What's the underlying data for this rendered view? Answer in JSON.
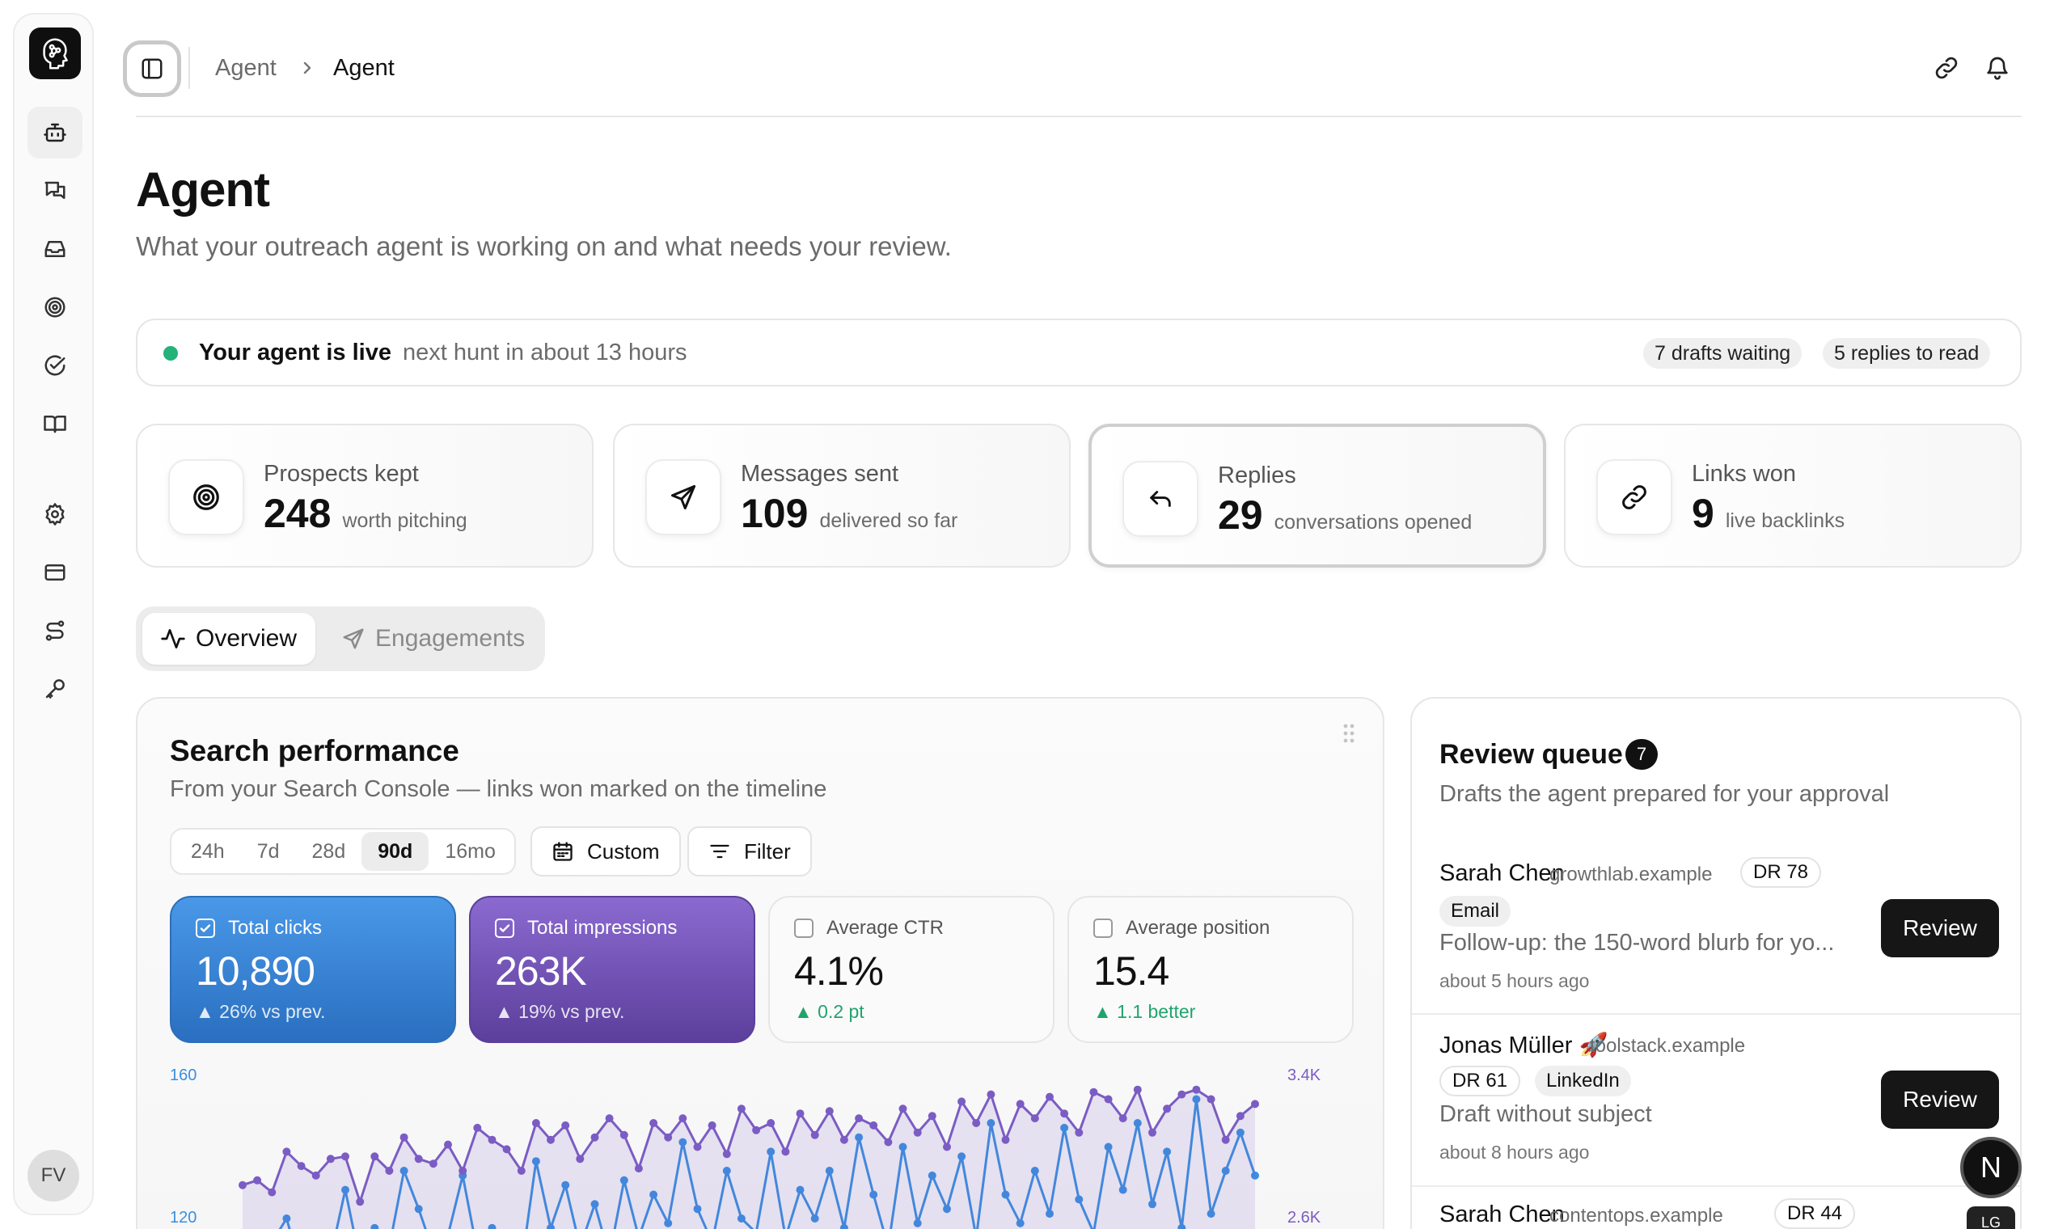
{
  "sidebar": {
    "items": [
      {
        "icon": "bot-icon",
        "active": true
      },
      {
        "icon": "chats-icon"
      },
      {
        "icon": "inbox-icon"
      },
      {
        "icon": "target-icon"
      },
      {
        "icon": "check-circle-icon"
      },
      {
        "icon": "book-icon"
      },
      {
        "icon": "gear-icon"
      },
      {
        "icon": "credit-card-icon"
      },
      {
        "icon": "route-icon"
      },
      {
        "icon": "key-icon"
      }
    ],
    "avatar": "FV"
  },
  "breadcrumb": {
    "items": [
      "Agent",
      "Agent"
    ]
  },
  "header": {
    "title": "Agent",
    "subtitle": "What your outreach agent is working on and what needs your review."
  },
  "status": {
    "title": "Your agent is live",
    "next_hunt": "next hunt in about 13 hours",
    "drafts": "7 drafts waiting",
    "replies": "5 replies to read",
    "dot_color": "#22b27a"
  },
  "stats": [
    {
      "label": "Prospects kept",
      "value": "248",
      "note": "worth pitching",
      "icon": "target-icon"
    },
    {
      "label": "Messages sent",
      "value": "109",
      "note": "delivered so far",
      "icon": "send-icon"
    },
    {
      "label": "Replies",
      "value": "29",
      "note": "conversations opened",
      "icon": "reply-icon"
    },
    {
      "label": "Links won",
      "value": "9",
      "note": "live backlinks",
      "icon": "link-icon"
    }
  ],
  "tabs": [
    {
      "label": "Overview",
      "icon": "activity-icon",
      "active": true
    },
    {
      "label": "Engagements",
      "icon": "send-icon",
      "active": false
    }
  ],
  "performance": {
    "title": "Search performance",
    "subtitle": "From your Search Console — links won marked on the timeline",
    "ranges": [
      "24h",
      "7d",
      "28d",
      "90d",
      "16mo"
    ],
    "active_range": "90d",
    "custom_label": "Custom",
    "filter_label": "Filter",
    "metrics": [
      {
        "label": "Total clicks",
        "value": "10,890",
        "delta": "▲ 26% vs prev.",
        "checked": true,
        "color": "#3b82d6"
      },
      {
        "label": "Total impressions",
        "value": "263K",
        "delta": "▲ 19% vs prev.",
        "checked": true,
        "color": "#7b5cc4"
      },
      {
        "label": "Average CTR",
        "value": "4.1%",
        "delta": "▲ 0.2 pt",
        "checked": false
      },
      {
        "label": "Average position",
        "value": "15.4",
        "delta": "▲ 1.1 better",
        "checked": false
      }
    ]
  },
  "chart_data": {
    "type": "line",
    "y_left_ticks": [
      "160",
      "120"
    ],
    "y_right_ticks": [
      "3.4K",
      "2.6K"
    ],
    "ylim_left": [
      80,
      160
    ],
    "ylim_right": [
      1800,
      3400
    ],
    "series": [
      {
        "name": "Total clicks",
        "axis": "left",
        "color": "#3b8fe0",
        "values": [
          88,
          80,
          90,
          100,
          78,
          92,
          84,
          112,
          82,
          96,
          88,
          120,
          104,
          86,
          93,
          118,
          86,
          96,
          92,
          80,
          124,
          96,
          114,
          88,
          106,
          84,
          116,
          92,
          110,
          98,
          132,
          104,
          90,
          120,
          100,
          94,
          128,
          92,
          112,
          100,
          120,
          96,
          134,
          110,
          88,
          130,
          98,
          118,
          104,
          126,
          92,
          140,
          110,
          98,
          120,
          102,
          138,
          108,
          94,
          130,
          112,
          140,
          106,
          128,
          96,
          150,
          102,
          120,
          136,
          118
        ]
      },
      {
        "name": "Total impressions",
        "axis": "right",
        "color": "#7b5cc4",
        "values": [
          2480,
          2520,
          2420,
          2760,
          2640,
          2560,
          2700,
          2720,
          2340,
          2720,
          2600,
          2880,
          2700,
          2660,
          2820,
          2600,
          2960,
          2860,
          2780,
          2600,
          3000,
          2860,
          2980,
          2700,
          2880,
          3040,
          2900,
          2620,
          3000,
          2880,
          3040,
          2800,
          2980,
          2740,
          3120,
          2940,
          3000,
          2760,
          3080,
          2900,
          3100,
          2860,
          3040,
          2980,
          2840,
          3120,
          2920,
          3060,
          2800,
          3180,
          3000,
          3240,
          2860,
          3160,
          3040,
          3220,
          3080,
          2920,
          3260,
          3200,
          3040,
          3280,
          2920,
          3120,
          3240,
          3280,
          3200,
          2860,
          3060,
          3160
        ]
      }
    ]
  },
  "review": {
    "title": "Review queue",
    "count": "7",
    "subtitle": "Drafts the agent prepared for your approval",
    "items": [
      {
        "name": "Sarah Chen",
        "domain": "growthlab.example",
        "dr": "DR 78",
        "channel": "Email",
        "preview": "Follow-up: the 150-word blurb for yo...",
        "time": "about 5 hours ago",
        "button": "Review"
      },
      {
        "name": "Jonas Müller 🚀",
        "domain": "toolstack.example",
        "dr": "DR 61",
        "channel": "LinkedIn",
        "preview": "Draft without subject",
        "time": "about 8 hours ago",
        "button": "Review"
      },
      {
        "name": "Sarah Chen",
        "domain": "contentops.example",
        "dr": "DR 44"
      }
    ]
  },
  "floating": {
    "n_label": "N",
    "lg_label": "LG"
  }
}
